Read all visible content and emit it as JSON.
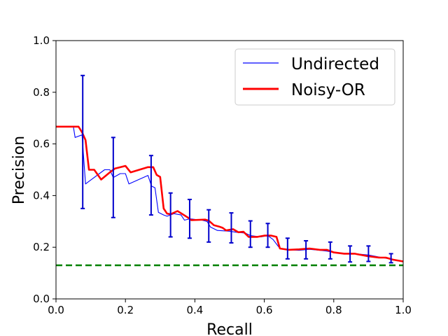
{
  "chart_data": {
    "type": "line",
    "title": "",
    "xlabel": "Recall",
    "ylabel": "Precision",
    "xlim": [
      0.0,
      1.0
    ],
    "ylim": [
      0.0,
      1.0
    ],
    "xticks": [
      "0.0",
      "0.2",
      "0.4",
      "0.6",
      "0.8",
      "1.0"
    ],
    "yticks": [
      "0.0",
      "0.2",
      "0.4",
      "0.6",
      "0.8",
      "1.0"
    ],
    "grid": false,
    "legend_position": "upper right",
    "series": [
      {
        "name": "Undirected",
        "color": "#0000ff",
        "style": "thin solid",
        "points": [
          [
            0.0,
            0.667
          ],
          [
            0.05,
            0.667
          ],
          [
            0.055,
            0.625
          ],
          [
            0.075,
            0.635
          ],
          [
            0.085,
            0.445
          ],
          [
            0.095,
            0.455
          ],
          [
            0.14,
            0.5
          ],
          [
            0.155,
            0.5
          ],
          [
            0.165,
            0.47
          ],
          [
            0.185,
            0.485
          ],
          [
            0.2,
            0.485
          ],
          [
            0.21,
            0.445
          ],
          [
            0.265,
            0.478
          ],
          [
            0.275,
            0.437
          ],
          [
            0.285,
            0.43
          ],
          [
            0.295,
            0.335
          ],
          [
            0.31,
            0.325
          ],
          [
            0.32,
            0.32
          ],
          [
            0.34,
            0.33
          ],
          [
            0.36,
            0.325
          ],
          [
            0.37,
            0.305
          ],
          [
            0.385,
            0.31
          ],
          [
            0.42,
            0.305
          ],
          [
            0.435,
            0.3
          ],
          [
            0.445,
            0.278
          ],
          [
            0.465,
            0.265
          ],
          [
            0.5,
            0.262
          ],
          [
            0.52,
            0.258
          ],
          [
            0.545,
            0.255
          ],
          [
            0.56,
            0.245
          ],
          [
            0.59,
            0.24
          ],
          [
            0.61,
            0.245
          ],
          [
            0.625,
            0.23
          ],
          [
            0.645,
            0.195
          ],
          [
            0.67,
            0.19
          ],
          [
            0.7,
            0.188
          ],
          [
            0.73,
            0.192
          ],
          [
            0.76,
            0.188
          ],
          [
            0.78,
            0.185
          ],
          [
            0.8,
            0.18
          ],
          [
            0.82,
            0.175
          ],
          [
            0.86,
            0.175
          ],
          [
            0.9,
            0.17
          ],
          [
            0.94,
            0.16
          ],
          [
            0.96,
            0.155
          ],
          [
            0.98,
            0.148
          ],
          [
            1.0,
            0.145
          ]
        ]
      },
      {
        "name": "Noisy-OR",
        "color": "#ff0000",
        "style": "thick solid",
        "points": [
          [
            0.0,
            0.667
          ],
          [
            0.065,
            0.667
          ],
          [
            0.075,
            0.645
          ],
          [
            0.085,
            0.615
          ],
          [
            0.095,
            0.5
          ],
          [
            0.11,
            0.5
          ],
          [
            0.13,
            0.462
          ],
          [
            0.155,
            0.49
          ],
          [
            0.17,
            0.505
          ],
          [
            0.2,
            0.515
          ],
          [
            0.215,
            0.49
          ],
          [
            0.265,
            0.51
          ],
          [
            0.28,
            0.51
          ],
          [
            0.29,
            0.48
          ],
          [
            0.3,
            0.472
          ],
          [
            0.31,
            0.35
          ],
          [
            0.32,
            0.33
          ],
          [
            0.33,
            0.328
          ],
          [
            0.35,
            0.34
          ],
          [
            0.38,
            0.315
          ],
          [
            0.39,
            0.305
          ],
          [
            0.43,
            0.307
          ],
          [
            0.44,
            0.303
          ],
          [
            0.455,
            0.285
          ],
          [
            0.47,
            0.28
          ],
          [
            0.48,
            0.275
          ],
          [
            0.49,
            0.265
          ],
          [
            0.51,
            0.27
          ],
          [
            0.525,
            0.258
          ],
          [
            0.54,
            0.26
          ],
          [
            0.555,
            0.24
          ],
          [
            0.58,
            0.24
          ],
          [
            0.6,
            0.245
          ],
          [
            0.62,
            0.245
          ],
          [
            0.635,
            0.24
          ],
          [
            0.645,
            0.195
          ],
          [
            0.67,
            0.19
          ],
          [
            0.7,
            0.192
          ],
          [
            0.73,
            0.195
          ],
          [
            0.76,
            0.19
          ],
          [
            0.78,
            0.19
          ],
          [
            0.8,
            0.18
          ],
          [
            0.83,
            0.175
          ],
          [
            0.86,
            0.175
          ],
          [
            0.9,
            0.165
          ],
          [
            0.93,
            0.16
          ],
          [
            0.95,
            0.16
          ],
          [
            0.97,
            0.152
          ],
          [
            1.0,
            0.145
          ]
        ]
      }
    ],
    "error_bars": {
      "series": "Undirected",
      "color": "#0000cc",
      "bars": [
        {
          "x": 0.077,
          "low": 0.35,
          "high": 0.865
        },
        {
          "x": 0.165,
          "low": 0.315,
          "high": 0.625
        },
        {
          "x": 0.274,
          "low": 0.325,
          "high": 0.555
        },
        {
          "x": 0.33,
          "low": 0.24,
          "high": 0.41
        },
        {
          "x": 0.385,
          "low": 0.235,
          "high": 0.385
        },
        {
          "x": 0.44,
          "low": 0.22,
          "high": 0.345
        },
        {
          "x": 0.505,
          "low": 0.217,
          "high": 0.333
        },
        {
          "x": 0.56,
          "low": 0.2,
          "high": 0.302
        },
        {
          "x": 0.61,
          "low": 0.2,
          "high": 0.292
        },
        {
          "x": 0.667,
          "low": 0.155,
          "high": 0.235
        },
        {
          "x": 0.72,
          "low": 0.155,
          "high": 0.225
        },
        {
          "x": 0.79,
          "low": 0.155,
          "high": 0.22
        },
        {
          "x": 0.847,
          "low": 0.143,
          "high": 0.205
        },
        {
          "x": 0.9,
          "low": 0.145,
          "high": 0.205
        },
        {
          "x": 0.965,
          "low": 0.14,
          "high": 0.175
        }
      ]
    },
    "baseline": {
      "y": 0.13,
      "color": "#008000",
      "style": "dashed"
    }
  }
}
